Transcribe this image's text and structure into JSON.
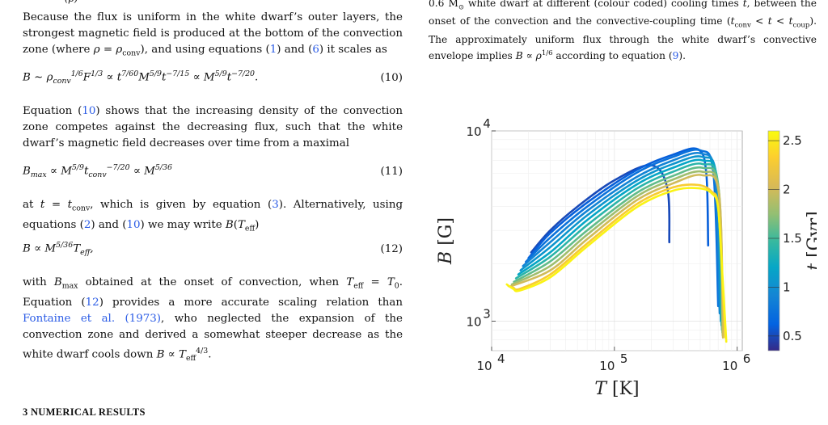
{
  "left": {
    "top_fragment": "(ρ)",
    "para1": "Because the flux is uniform in the white dwarf’s outer layers, the strongest magnetic field is produced at the bottom of the convection zone (where ρ = ρconv), and using equations (1) and (6) it scales as",
    "eq10": "B ∼ ρconv1/6 F1/3 ∝ t7/60 M5/9 t−7/15 ∝ M5/9 t−7/20.",
    "eq10_num": "(10)",
    "para2": "Equation (10) shows that the increasing density of the convection zone competes against the decreasing flux, such that the white dwarf’s magnetic field decreases over time from a maximal",
    "eq11": "Bmax ∝ M5/9 tconv−7/20 ∝ M5/36",
    "eq11_num": "(11)",
    "para3": "at t = tconv, which is given by equation (3). Alternatively, using equations (2) and (10) we may write B(Teff)",
    "eq12": "B ∝ M5/36 Teff,",
    "eq12_num": "(12)",
    "para4a": "with Bmax obtained at the onset of convection, when Teff = T0. Equation (12) provides a more accurate scaling relation than ",
    "para4_link": "Fontaine et al. (1973)",
    "para4b": ", who neglected the expansion of the convection zone and derived a somewhat steeper decrease as the white dwarf cools down B ∝ Teff4/3.",
    "section_heading": "3 NUMERICAL RESULTS"
  },
  "caption": {
    "text": "0.6 M⊙ white dwarf at different (colour coded) cooling times t, between the onset of the convection and the convective-coupling time (tconv < t < tcoup). The approximately uniform flux through the white dwarf’s convective envelope implies B ∝ ρ1/6 according to equation (9)."
  },
  "chart_data": {
    "type": "line",
    "xlabel": "T [K]",
    "ylabel": "B [G]",
    "x_scale": "log",
    "y_scale": "log",
    "xlim": [
      10000,
      1100000
    ],
    "ylim": [
      700,
      10000
    ],
    "x_ticks": [
      "10",
      "10",
      "10"
    ],
    "x_tick_exponents": [
      "4",
      "5",
      "6"
    ],
    "y_ticks": [
      "10",
      "10"
    ],
    "y_tick_exponents": [
      "3",
      "4"
    ],
    "grid": true,
    "colorbar": {
      "label": "t [Gyr]",
      "range": [
        0.35,
        2.6
      ],
      "ticks": [
        "0.5",
        "1",
        "1.5",
        "2",
        "2.5"
      ],
      "colormap": "parula"
    },
    "series": [
      {
        "t": 0.5,
        "x": [
          21000,
          30000,
          50000,
          100000,
          200000,
          270000,
          280000
        ],
        "y": [
          2300,
          3000,
          4000,
          5500,
          6600,
          5000,
          2600
        ]
      },
      {
        "t": 0.6,
        "x": [
          20000,
          30000,
          60000,
          150000,
          300000,
          480000,
          560000,
          580000
        ],
        "y": [
          2150,
          2900,
          4200,
          6200,
          7500,
          8000,
          6000,
          2500
        ]
      },
      {
        "t": 0.75,
        "x": [
          19000,
          30000,
          60000,
          150000,
          300000,
          500000,
          640000,
          700000
        ],
        "y": [
          2050,
          2750,
          4000,
          6000,
          7300,
          7900,
          6000,
          1200
        ]
      },
      {
        "t": 0.9,
        "x": [
          18000,
          30000,
          60000,
          150000,
          300000,
          510000,
          660000,
          720000
        ],
        "y": [
          1950,
          2600,
          3800,
          5700,
          7000,
          7600,
          5800,
          1100
        ]
      },
      {
        "t": 1.05,
        "x": [
          17200,
          30000,
          60000,
          150000,
          300000,
          520000,
          680000,
          735000
        ],
        "y": [
          1850,
          2450,
          3600,
          5450,
          6700,
          7300,
          5600,
          1000
        ]
      },
      {
        "t": 1.2,
        "x": [
          16500,
          30000,
          60000,
          150000,
          300000,
          520000,
          690000,
          745000
        ],
        "y": [
          1760,
          2300,
          3400,
          5200,
          6400,
          7000,
          5400,
          950
        ]
      },
      {
        "t": 1.4,
        "x": [
          15800,
          30000,
          60000,
          150000,
          300000,
          520000,
          700000,
          752000
        ],
        "y": [
          1680,
          2180,
          3200,
          4950,
          6100,
          6700,
          5200,
          900
        ]
      },
      {
        "t": 1.6,
        "x": [
          15200,
          30000,
          60000,
          150000,
          300000,
          520000,
          705000,
          758000
        ],
        "y": [
          1610,
          2060,
          3000,
          4700,
          5800,
          6400,
          5000,
          870
        ]
      },
      {
        "t": 1.8,
        "x": [
          14600,
          30000,
          60000,
          150000,
          300000,
          520000,
          710000,
          762000
        ],
        "y": [
          1560,
          1950,
          2850,
          4500,
          5550,
          6100,
          4800,
          840
        ]
      },
      {
        "t": 2.0,
        "x": [
          14100,
          30000,
          60000,
          150000,
          300000,
          520000,
          712000,
          766000
        ],
        "y": [
          1520,
          1850,
          2700,
          4300,
          5300,
          5850,
          4600,
          820
        ]
      },
      {
        "t": 2.3,
        "x": [
          13700,
          15000,
          17000,
          30000,
          60000,
          150000,
          300000,
          480000,
          620000,
          700000,
          760000,
          800000
        ],
        "y": [
          1530,
          1500,
          1480,
          1760,
          2560,
          4100,
          5050,
          5200,
          4800,
          4000,
          1500,
          820
        ]
      },
      {
        "t": 2.55,
        "x": [
          13300,
          15000,
          17000,
          30000,
          60000,
          150000,
          300000,
          480000,
          620000,
          700000,
          760000,
          815000
        ],
        "y": [
          1560,
          1480,
          1450,
          1700,
          2470,
          3950,
          4850,
          5000,
          4700,
          3900,
          1700,
          780
        ]
      }
    ]
  }
}
